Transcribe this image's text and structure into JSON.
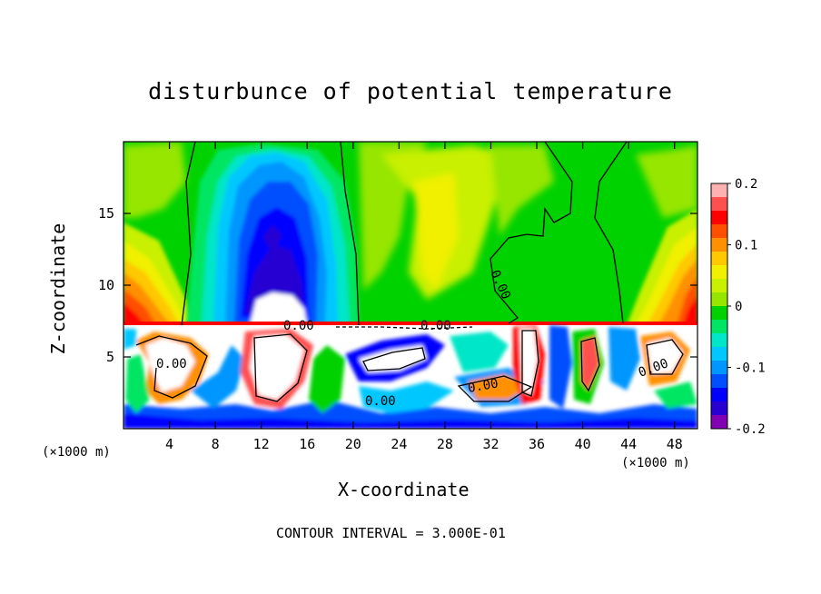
{
  "chart_data": {
    "type": "heatmap",
    "title": "disturbunce of potential temperature",
    "xlabel": "X-coordinate",
    "ylabel": "Z-coordinate",
    "x_unit": "(×1000 m)",
    "xlim": [
      0,
      50
    ],
    "ylim": [
      0,
      20
    ],
    "x_ticks": [
      4,
      8,
      12,
      16,
      20,
      24,
      28,
      32,
      36,
      40,
      44,
      48
    ],
    "y_ticks": [
      5,
      10,
      15
    ],
    "colorbar": {
      "range": [
        -0.2,
        0.2
      ],
      "tick_labels": [
        "0.2",
        "0.1",
        "0",
        "-0.1",
        "-0.2"
      ],
      "colors": [
        "#ffb0b0",
        "#ff5050",
        "#ff0000",
        "#ff5000",
        "#ff9000",
        "#ffc800",
        "#f0f000",
        "#c8f000",
        "#96e600",
        "#00d200",
        "#00e664",
        "#00e6c8",
        "#00c8ff",
        "#0096ff",
        "#0050ff",
        "#0000ff",
        "#2800d2",
        "#8200b4"
      ]
    },
    "contour_interval": "CONTOUR INTERVAL = 3.000E-01",
    "contour_labels": [
      "0.00",
      "0.00",
      "0.00",
      "0.00",
      "0.00",
      "0.00",
      "0.00"
    ],
    "grid": false,
    "legend": "right"
  }
}
